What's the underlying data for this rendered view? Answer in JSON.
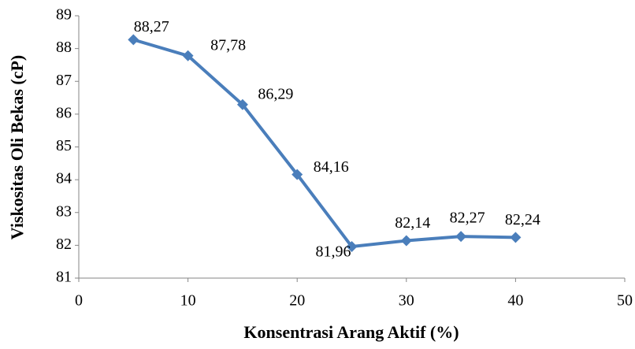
{
  "chart_data": {
    "type": "line",
    "x": [
      5,
      10,
      15,
      20,
      25,
      30,
      35,
      40
    ],
    "series": [
      {
        "name": "Viskositas",
        "color": "#4a7ebb",
        "values": [
          88.27,
          87.78,
          86.29,
          84.16,
          81.96,
          82.14,
          82.27,
          82.24
        ],
        "value_labels": [
          "88,27",
          "87,78",
          "86,29",
          "84,16",
          "81,96",
          "82,14",
          "82,27",
          "82,24"
        ]
      }
    ],
    "xlabel": "Konsentrasi Arang Aktif (%)",
    "ylabel": "Viskositas Oli Bekas (cP)",
    "xlim": [
      0,
      50
    ],
    "xticks": [
      0,
      10,
      20,
      30,
      40,
      50
    ],
    "ylim": [
      81,
      89
    ],
    "yticks": [
      81,
      82,
      83,
      84,
      85,
      86,
      87,
      88,
      89
    ],
    "grid": false
  }
}
